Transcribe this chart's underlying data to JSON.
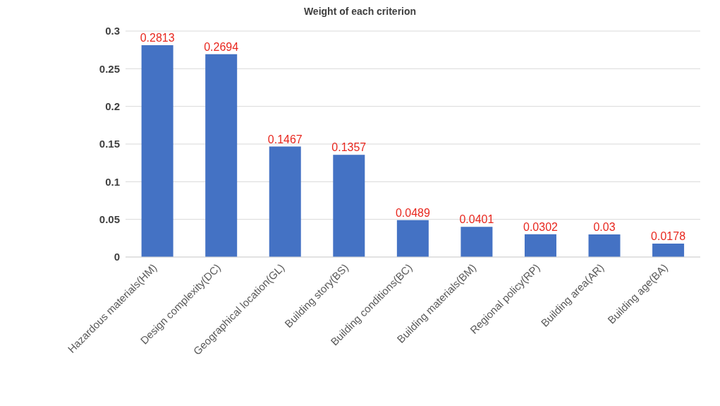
{
  "chart_data": {
    "type": "bar",
    "title": "Weight of each criterion",
    "categories": [
      "Hazardous materials(HM)",
      "Design complexity(DC)",
      "Geographical location(GL)",
      "Building story(BS)",
      "Building conditions(BC)",
      "Building materials(BM)",
      "Regional policy(RP)",
      "Building area(AR)",
      "Building age(BA)"
    ],
    "values": [
      0.2813,
      0.2694,
      0.1467,
      0.1357,
      0.0489,
      0.0401,
      0.0302,
      0.03,
      0.0178
    ],
    "color": "#4472c4",
    "ylim": [
      0,
      0.3
    ],
    "yticks": [
      0,
      0.05,
      0.1,
      0.15,
      0.2,
      0.25,
      0.3
    ],
    "grid": "y",
    "data_labels": true
  }
}
